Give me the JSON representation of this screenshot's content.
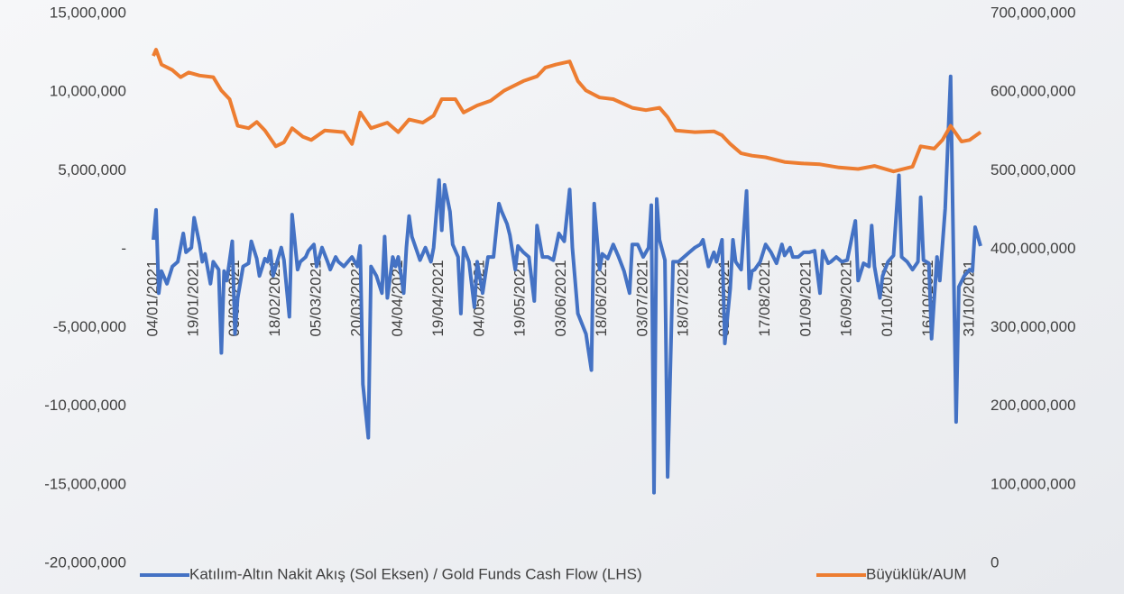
{
  "chart_data": {
    "type": "line",
    "xlim": [
      "04/01/2021",
      "04/11/2021"
    ],
    "xticks": [
      "04/01/2021",
      "19/01/2021",
      "03/02/2021",
      "18/02/2021",
      "05/03/2021",
      "20/03/2021",
      "04/04/2021",
      "19/04/2021",
      "04/05/2021",
      "19/05/2021",
      "03/06/2021",
      "18/06/2021",
      "03/07/2021",
      "18/07/2021",
      "02/08/2021",
      "17/08/2021",
      "01/09/2021",
      "16/09/2021",
      "01/10/2021",
      "16/10/2021",
      "31/10/2021"
    ],
    "ylim": [
      -20000000,
      15000000
    ],
    "yticks": [
      {
        "value": 15000000,
        "label": "15,000,000"
      },
      {
        "value": 10000000,
        "label": "10,000,000"
      },
      {
        "value": 5000000,
        "label": "5,000,000"
      },
      {
        "value": 0,
        "label": "-"
      },
      {
        "value": -5000000,
        "label": "-5,000,000"
      },
      {
        "value": -10000000,
        "label": "-10,000,000"
      },
      {
        "value": -15000000,
        "label": "-15,000,000"
      },
      {
        "value": -20000000,
        "label": "-20,000,000"
      }
    ],
    "y2lim": [
      0,
      700000000
    ],
    "y2ticks": [
      {
        "value": 700000000,
        "label": "700,000,000"
      },
      {
        "value": 600000000,
        "label": "600,000,000"
      },
      {
        "value": 500000000,
        "label": "500,000,000"
      },
      {
        "value": 400000000,
        "label": "400,000,000"
      },
      {
        "value": 300000000,
        "label": "300,000,000"
      },
      {
        "value": 200000000,
        "label": "200,000,000"
      },
      {
        "value": 100000000,
        "label": "100,000,000"
      },
      0
    ],
    "legend": "bottom",
    "series": [
      {
        "name": "Katılım-Altın Nakit Akış (Sol Eksen) / Gold Funds Cash Flow (LHS)",
        "color": "#4472c4",
        "axis": "y",
        "x": [
          "04/01/2021",
          "05/01/2021",
          "06/01/2021",
          "07/01/2021",
          "09/01/2021",
          "11/01/2021",
          "13/01/2021",
          "15/01/2021",
          "16/01/2021",
          "18/01/2021",
          "19/01/2021",
          "21/01/2021",
          "22/01/2021",
          "23/01/2021",
          "25/01/2021",
          "26/01/2021",
          "28/01/2021",
          "29/01/2021",
          "30/01/2021",
          "31/01/2021",
          "02/02/2021",
          "03/02/2021",
          "04/02/2021",
          "06/02/2021",
          "08/02/2021",
          "09/02/2021",
          "11/02/2021",
          "12/02/2021",
          "14/02/2021",
          "15/02/2021",
          "16/02/2021",
          "17/02/2021",
          "19/02/2021",
          "20/02/2021",
          "21/02/2021",
          "23/02/2021",
          "24/02/2021",
          "26/02/2021",
          "27/02/2021",
          "01/03/2021",
          "02/03/2021",
          "04/03/2021",
          "05/03/2021",
          "07/03/2021",
          "09/03/2021",
          "10/03/2021",
          "12/03/2021",
          "13/03/2021",
          "15/03/2021",
          "16/03/2021",
          "18/03/2021",
          "20/03/2021",
          "21/03/2021",
          "22/03/2021",
          "24/03/2021",
          "25/03/2021",
          "27/03/2021",
          "29/03/2021",
          "30/03/2021",
          "31/03/2021",
          "02/04/2021",
          "03/04/2021",
          "04/04/2021",
          "06/04/2021",
          "07/04/2021",
          "08/04/2021",
          "09/04/2021",
          "11/04/2021",
          "12/04/2021",
          "14/04/2021",
          "16/04/2021",
          "17/04/2021",
          "19/04/2021",
          "20/04/2021",
          "21/04/2021",
          "23/04/2021",
          "24/04/2021",
          "26/04/2021",
          "27/04/2021",
          "28/04/2021",
          "30/04/2021",
          "02/05/2021",
          "03/05/2021",
          "05/05/2021",
          "07/05/2021",
          "09/05/2021",
          "11/05/2021",
          "12/05/2021",
          "14/05/2021",
          "15/05/2021",
          "17/05/2021",
          "18/05/2021",
          "20/05/2021",
          "22/05/2021",
          "24/05/2021",
          "25/05/2021",
          "27/05/2021",
          "29/05/2021",
          "31/05/2021",
          "02/06/2021",
          "04/06/2021",
          "06/06/2021",
          "07/06/2021",
          "09/06/2021",
          "12/06/2021",
          "14/06/2021",
          "15/06/2021",
          "17/06/2021",
          "18/06/2021",
          "20/06/2021",
          "22/06/2021",
          "24/06/2021",
          "26/06/2021",
          "28/06/2021",
          "29/06/2021",
          "01/07/2021",
          "03/07/2021",
          "05/07/2021",
          "06/07/2021",
          "07/07/2021",
          "08/07/2021",
          "09/07/2021",
          "11/07/2021",
          "12/07/2021",
          "14/07/2021",
          "16/07/2021",
          "18/07/2021",
          "20/07/2021",
          "22/07/2021",
          "24/07/2021",
          "25/07/2021",
          "27/07/2021",
          "29/07/2021",
          "30/07/2021",
          "01/08/2021",
          "02/08/2021",
          "04/08/2021",
          "05/08/2021",
          "06/08/2021",
          "08/08/2021",
          "10/08/2021",
          "11/08/2021",
          "12/08/2021",
          "13/08/2021",
          "15/08/2021",
          "17/08/2021",
          "19/08/2021",
          "21/08/2021",
          "23/08/2021",
          "24/08/2021",
          "26/08/2021",
          "27/08/2021",
          "29/08/2021",
          "31/08/2021",
          "02/09/2021",
          "04/09/2021",
          "06/09/2021",
          "07/09/2021",
          "09/09/2021",
          "10/09/2021",
          "12/09/2021",
          "14/09/2021",
          "16/09/2021",
          "18/09/2021",
          "19/09/2021",
          "20/09/2021",
          "22/09/2021",
          "24/09/2021",
          "25/09/2021",
          "26/09/2021",
          "28/09/2021",
          "29/09/2021",
          "01/10/2021",
          "03/10/2021",
          "05/10/2021",
          "06/10/2021",
          "08/10/2021",
          "10/10/2021",
          "12/10/2021",
          "13/10/2021",
          "14/10/2021",
          "16/10/2021",
          "17/10/2021",
          "19/10/2021",
          "20/10/2021",
          "22/10/2021",
          "24/10/2021",
          "26/10/2021",
          "27/10/2021",
          "29/10/2021",
          "31/10/2021",
          "01/11/2021",
          "02/11/2021",
          "04/11/2021"
        ],
        "values": [
          600000,
          2500000,
          -2800000,
          -1400000,
          -2200000,
          -1100000,
          -800000,
          1000000,
          -200000,
          100000,
          2000000,
          300000,
          -800000,
          -300000,
          -2200000,
          -800000,
          -1300000,
          -6600000,
          -1400000,
          -2000000,
          500000,
          -5400000,
          -3100000,
          -1100000,
          -900000,
          500000,
          -600000,
          -1700000,
          -600000,
          -800000,
          -100000,
          -1700000,
          -500000,
          100000,
          -700000,
          -4300000,
          2200000,
          -1300000,
          -800000,
          -500000,
          -100000,
          300000,
          -1100000,
          100000,
          -800000,
          -1300000,
          -500000,
          -800000,
          -1100000,
          -900000,
          -500000,
          -1100000,
          200000,
          -8600000,
          -12000000,
          -1100000,
          -1700000,
          -2800000,
          800000,
          -3100000,
          -500000,
          -1100000,
          -500000,
          -2800000,
          100000,
          2100000,
          800000,
          -200000,
          -700000,
          100000,
          -800000,
          100000,
          4400000,
          1200000,
          4100000,
          2400000,
          300000,
          -500000,
          -4100000,
          100000,
          -800000,
          -3700000,
          -800000,
          -2800000,
          -500000,
          -500000,
          2900000,
          2400000,
          1600000,
          900000,
          -1300000,
          200000,
          -200000,
          -500000,
          -3300000,
          1500000,
          -500000,
          -500000,
          -700000,
          1000000,
          500000,
          3800000,
          100000,
          -4100000,
          -5400000,
          -7700000,
          2900000,
          -1300000,
          -300000,
          -600000,
          300000,
          -500000,
          -1400000,
          -2800000,
          300000,
          300000,
          -500000,
          100000,
          2800000,
          -15500000,
          3200000,
          600000,
          -700000,
          -14500000,
          -800000,
          -800000,
          -500000,
          -200000,
          100000,
          300000,
          600000,
          -1100000,
          -200000,
          -800000,
          600000,
          -6000000,
          -2500000,
          600000,
          -800000,
          -1300000,
          3700000,
          -2500000,
          -1400000,
          -1300000,
          -800000,
          300000,
          -200000,
          -900000,
          300000,
          -400000,
          100000,
          -500000,
          -500000,
          -200000,
          -200000,
          -100000,
          -2800000,
          -100000,
          -900000,
          -800000,
          -500000,
          -800000,
          -700000,
          1000000,
          1800000,
          -2000000,
          -900000,
          -1100000,
          1500000,
          -1100000,
          -3100000,
          -1700000,
          -800000,
          -400000,
          4700000,
          -500000,
          -800000,
          -1300000,
          -800000,
          3300000,
          -700000,
          -900000,
          -5700000,
          -500000,
          -2000000,
          2600000,
          11000000,
          -11000000,
          -2400000,
          -1700000,
          -1300000,
          -1400000,
          1400000,
          200000
        ]
      },
      {
        "name": "Büyüklük/AUM",
        "color": "#ed7d31",
        "axis": "y2",
        "x": [
          "04/01/2021",
          "05/01/2021",
          "07/01/2021",
          "11/01/2021",
          "14/01/2021",
          "17/01/2021",
          "21/01/2021",
          "26/01/2021",
          "29/01/2021",
          "01/02/2021",
          "04/02/2021",
          "08/02/2021",
          "11/02/2021",
          "14/02/2021",
          "18/02/2021",
          "21/02/2021",
          "24/02/2021",
          "28/02/2021",
          "03/03/2021",
          "08/03/2021",
          "15/03/2021",
          "18/03/2021",
          "21/03/2021",
          "25/03/2021",
          "31/03/2021",
          "04/04/2021",
          "08/04/2021",
          "13/04/2021",
          "17/04/2021",
          "20/04/2021",
          "25/04/2021",
          "28/04/2021",
          "03/05/2021",
          "08/05/2021",
          "13/05/2021",
          "20/05/2021",
          "25/05/2021",
          "28/05/2021",
          "01/06/2021",
          "06/06/2021",
          "09/06/2021",
          "12/06/2021",
          "17/06/2021",
          "22/06/2021",
          "29/06/2021",
          "04/07/2021",
          "09/07/2021",
          "12/07/2021",
          "15/07/2021",
          "22/07/2021",
          "29/07/2021",
          "01/08/2021",
          "04/08/2021",
          "08/08/2021",
          "12/08/2021",
          "17/08/2021",
          "24/08/2021",
          "31/08/2021",
          "06/09/2021",
          "13/09/2021",
          "20/09/2021",
          "26/09/2021",
          "03/10/2021",
          "10/10/2021",
          "13/10/2021",
          "18/10/2021",
          "21/10/2021",
          "24/10/2021",
          "28/10/2021",
          "31/10/2021",
          "04/11/2021"
        ],
        "values": [
          646000000,
          654000000,
          635000000,
          628000000,
          619000000,
          625000000,
          621000000,
          619000000,
          602000000,
          591000000,
          557000000,
          554000000,
          562000000,
          551000000,
          531000000,
          536000000,
          554000000,
          543000000,
          539000000,
          551000000,
          549000000,
          534000000,
          574000000,
          554000000,
          561000000,
          549000000,
          565000000,
          561000000,
          570000000,
          591000000,
          591000000,
          574000000,
          583000000,
          589000000,
          602000000,
          614000000,
          620000000,
          631000000,
          635000000,
          639000000,
          614000000,
          602000000,
          593000000,
          591000000,
          580000000,
          577000000,
          580000000,
          568000000,
          551000000,
          549000000,
          550000000,
          545000000,
          534000000,
          522000000,
          519000000,
          517000000,
          511000000,
          509000000,
          508000000,
          504000000,
          502000000,
          506000000,
          499000000,
          505000000,
          531000000,
          528000000,
          539000000,
          557000000,
          537000000,
          539000000,
          549000000
        ]
      }
    ]
  }
}
